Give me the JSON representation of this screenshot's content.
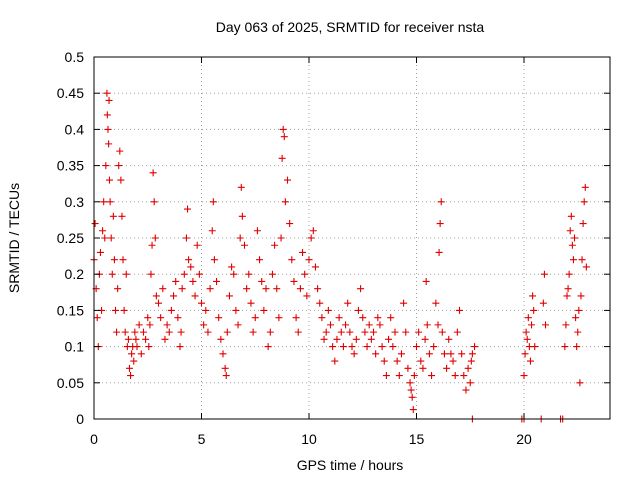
{
  "chart_data": {
    "type": "scatter",
    "title": "Day 063 of 2025, SRMTID for receiver nsta",
    "xlabel": "GPS time / hours",
    "ylabel": "SRMTID / TECUs",
    "xlim": [
      0,
      24
    ],
    "ylim": [
      0,
      0.5
    ],
    "x_ticks": [
      0,
      5,
      10,
      15,
      20
    ],
    "x_tick_labels": [
      "0",
      "5",
      "10",
      "15",
      "20"
    ],
    "y_ticks": [
      0,
      0.05,
      0.1,
      0.15,
      0.2,
      0.25,
      0.3,
      0.35,
      0.4,
      0.45,
      0.5
    ],
    "y_tick_labels": [
      "0",
      "0.05",
      "0.1",
      "0.15",
      "0.2",
      "0.25",
      "0.3",
      "0.35",
      "0.4",
      "0.45",
      "0.5"
    ],
    "grid": true,
    "marker": "plus",
    "color": "#e00000",
    "series": [
      {
        "name": "SRMTID",
        "points": [
          [
            0.0,
            0.22
          ],
          [
            0.05,
            0.27
          ],
          [
            0.1,
            0.18
          ],
          [
            0.15,
            0.14
          ],
          [
            0.2,
            0.1
          ],
          [
            0.25,
            0.2
          ],
          [
            0.3,
            0.23
          ],
          [
            0.35,
            0.15
          ],
          [
            0.4,
            0.26
          ],
          [
            0.45,
            0.3
          ],
          [
            0.5,
            0.25
          ],
          [
            0.55,
            0.35
          ],
          [
            0.6,
            0.45
          ],
          [
            0.62,
            0.42
          ],
          [
            0.65,
            0.4
          ],
          [
            0.68,
            0.38
          ],
          [
            0.7,
            0.44
          ],
          [
            0.72,
            0.33
          ],
          [
            0.75,
            0.3
          ],
          [
            0.8,
            0.25
          ],
          [
            0.85,
            0.2
          ],
          [
            0.9,
            0.28
          ],
          [
            0.95,
            0.22
          ],
          [
            1.0,
            0.15
          ],
          [
            1.05,
            0.12
          ],
          [
            1.1,
            0.18
          ],
          [
            1.15,
            0.35
          ],
          [
            1.2,
            0.37
          ],
          [
            1.25,
            0.33
          ],
          [
            1.3,
            0.28
          ],
          [
            1.35,
            0.22
          ],
          [
            1.4,
            0.15
          ],
          [
            1.45,
            0.12
          ],
          [
            1.5,
            0.2
          ],
          [
            1.55,
            0.1
          ],
          [
            1.6,
            0.11
          ],
          [
            1.65,
            0.07
          ],
          [
            1.7,
            0.06
          ],
          [
            1.75,
            0.09
          ],
          [
            1.8,
            0.1
          ],
          [
            1.85,
            0.08
          ],
          [
            1.9,
            0.12
          ],
          [
            1.95,
            0.11
          ],
          [
            2.0,
            0.1
          ],
          [
            2.1,
            0.13
          ],
          [
            2.2,
            0.09
          ],
          [
            2.3,
            0.12
          ],
          [
            2.4,
            0.11
          ],
          [
            2.5,
            0.14
          ],
          [
            2.55,
            0.1
          ],
          [
            2.6,
            0.13
          ],
          [
            2.65,
            0.2
          ],
          [
            2.7,
            0.24
          ],
          [
            2.75,
            0.34
          ],
          [
            2.8,
            0.3
          ],
          [
            2.85,
            0.25
          ],
          [
            2.9,
            0.17
          ],
          [
            3.0,
            0.16
          ],
          [
            3.1,
            0.14
          ],
          [
            3.2,
            0.18
          ],
          [
            3.3,
            0.11
          ],
          [
            3.4,
            0.13
          ],
          [
            3.5,
            0.12
          ],
          [
            3.6,
            0.15
          ],
          [
            3.7,
            0.17
          ],
          [
            3.8,
            0.19
          ],
          [
            3.9,
            0.14
          ],
          [
            4.0,
            0.1
          ],
          [
            4.05,
            0.12
          ],
          [
            4.1,
            0.18
          ],
          [
            4.2,
            0.2
          ],
          [
            4.3,
            0.25
          ],
          [
            4.35,
            0.29
          ],
          [
            4.4,
            0.22
          ],
          [
            4.5,
            0.21
          ],
          [
            4.6,
            0.19
          ],
          [
            4.7,
            0.17
          ],
          [
            4.8,
            0.24
          ],
          [
            4.9,
            0.2
          ],
          [
            5.0,
            0.16
          ],
          [
            5.1,
            0.13
          ],
          [
            5.2,
            0.15
          ],
          [
            5.3,
            0.12
          ],
          [
            5.4,
            0.18
          ],
          [
            5.5,
            0.26
          ],
          [
            5.55,
            0.3
          ],
          [
            5.6,
            0.22
          ],
          [
            5.7,
            0.19
          ],
          [
            5.8,
            0.14
          ],
          [
            5.9,
            0.11
          ],
          [
            6.0,
            0.09
          ],
          [
            6.1,
            0.07
          ],
          [
            6.15,
            0.06
          ],
          [
            6.2,
            0.12
          ],
          [
            6.3,
            0.17
          ],
          [
            6.4,
            0.21
          ],
          [
            6.5,
            0.2
          ],
          [
            6.6,
            0.15
          ],
          [
            6.7,
            0.13
          ],
          [
            6.8,
            0.25
          ],
          [
            6.85,
            0.32
          ],
          [
            6.9,
            0.28
          ],
          [
            7.0,
            0.24
          ],
          [
            7.1,
            0.18
          ],
          [
            7.2,
            0.2
          ],
          [
            7.3,
            0.16
          ],
          [
            7.4,
            0.12
          ],
          [
            7.5,
            0.14
          ],
          [
            7.6,
            0.26
          ],
          [
            7.7,
            0.22
          ],
          [
            7.8,
            0.19
          ],
          [
            7.9,
            0.15
          ],
          [
            8.0,
            0.18
          ],
          [
            8.1,
            0.1
          ],
          [
            8.2,
            0.12
          ],
          [
            8.3,
            0.2
          ],
          [
            8.4,
            0.24
          ],
          [
            8.5,
            0.18
          ],
          [
            8.6,
            0.14
          ],
          [
            8.7,
            0.25
          ],
          [
            8.75,
            0.36
          ],
          [
            8.8,
            0.4
          ],
          [
            8.85,
            0.39
          ],
          [
            8.9,
            0.3
          ],
          [
            9.0,
            0.33
          ],
          [
            9.1,
            0.27
          ],
          [
            9.2,
            0.22
          ],
          [
            9.3,
            0.19
          ],
          [
            9.4,
            0.14
          ],
          [
            9.5,
            0.12
          ],
          [
            9.6,
            0.18
          ],
          [
            9.7,
            0.23
          ],
          [
            9.8,
            0.2
          ],
          [
            9.9,
            0.17
          ],
          [
            10.0,
            0.22
          ],
          [
            10.1,
            0.25
          ],
          [
            10.2,
            0.26
          ],
          [
            10.3,
            0.21
          ],
          [
            10.4,
            0.18
          ],
          [
            10.5,
            0.16
          ],
          [
            10.6,
            0.14
          ],
          [
            10.7,
            0.11
          ],
          [
            10.8,
            0.12
          ],
          [
            10.9,
            0.15
          ],
          [
            11.0,
            0.13
          ],
          [
            11.1,
            0.1
          ],
          [
            11.2,
            0.08
          ],
          [
            11.3,
            0.11
          ],
          [
            11.4,
            0.14
          ],
          [
            11.5,
            0.12
          ],
          [
            11.6,
            0.1
          ],
          [
            11.7,
            0.13
          ],
          [
            11.8,
            0.16
          ],
          [
            11.9,
            0.12
          ],
          [
            12.0,
            0.1
          ],
          [
            12.1,
            0.09
          ],
          [
            12.2,
            0.11
          ],
          [
            12.3,
            0.15
          ],
          [
            12.4,
            0.18
          ],
          [
            12.5,
            0.14
          ],
          [
            12.6,
            0.12
          ],
          [
            12.7,
            0.1
          ],
          [
            12.8,
            0.13
          ],
          [
            12.9,
            0.11
          ],
          [
            13.0,
            0.12
          ],
          [
            13.1,
            0.09
          ],
          [
            13.2,
            0.14
          ],
          [
            13.3,
            0.13
          ],
          [
            13.4,
            0.1
          ],
          [
            13.5,
            0.08
          ],
          [
            13.6,
            0.06
          ],
          [
            13.7,
            0.11
          ],
          [
            13.8,
            0.14
          ],
          [
            13.9,
            0.1
          ],
          [
            14.0,
            0.12
          ],
          [
            14.1,
            0.08
          ],
          [
            14.2,
            0.06
          ],
          [
            14.3,
            0.09
          ],
          [
            14.4,
            0.16
          ],
          [
            14.5,
            0.12
          ],
          [
            14.6,
            0.07
          ],
          [
            14.7,
            0.05
          ],
          [
            14.75,
            0.04
          ],
          [
            14.8,
            0.03
          ],
          [
            14.85,
            0.013
          ],
          [
            14.9,
            0.06
          ],
          [
            15.0,
            0.1
          ],
          [
            15.1,
            0.12
          ],
          [
            15.2,
            0.08
          ],
          [
            15.3,
            0.07
          ],
          [
            15.4,
            0.11
          ],
          [
            15.45,
            0.19
          ],
          [
            15.5,
            0.13
          ],
          [
            15.6,
            0.09
          ],
          [
            15.7,
            0.06
          ],
          [
            15.8,
            0.1
          ],
          [
            15.9,
            0.16
          ],
          [
            16.0,
            0.13
          ],
          [
            16.05,
            0.23
          ],
          [
            16.1,
            0.27
          ],
          [
            16.15,
            0.3
          ],
          [
            16.2,
            0.12
          ],
          [
            16.3,
            0.09
          ],
          [
            16.4,
            0.07
          ],
          [
            16.5,
            0.11
          ],
          [
            16.6,
            0.09
          ],
          [
            16.7,
            0.08
          ],
          [
            16.8,
            0.06
          ],
          [
            16.9,
            0.12
          ],
          [
            17.0,
            0.15
          ],
          [
            17.1,
            0.09
          ],
          [
            17.2,
            0.06
          ],
          [
            17.3,
            0.04
          ],
          [
            17.4,
            0.07
          ],
          [
            17.5,
            0.05
          ],
          [
            17.55,
            0.08
          ],
          [
            17.6,
            0.09
          ],
          [
            17.7,
            0.1
          ],
          [
            17.6,
            0.0
          ],
          [
            19.9,
            0.0
          ],
          [
            20.0,
            0.0
          ],
          [
            20.0,
            0.06
          ],
          [
            20.05,
            0.09
          ],
          [
            20.1,
            0.12
          ],
          [
            20.15,
            0.11
          ],
          [
            20.2,
            0.14
          ],
          [
            20.25,
            0.1
          ],
          [
            20.3,
            0.08
          ],
          [
            20.35,
            0.13
          ],
          [
            20.4,
            0.17
          ],
          [
            20.45,
            0.15
          ],
          [
            20.5,
            0.1
          ],
          [
            20.8,
            0.0
          ],
          [
            20.9,
            0.16
          ],
          [
            20.95,
            0.2
          ],
          [
            21.0,
            0.13
          ],
          [
            21.7,
            0.0
          ],
          [
            21.8,
            0.0
          ],
          [
            21.9,
            0.1
          ],
          [
            21.95,
            0.13
          ],
          [
            22.0,
            0.17
          ],
          [
            22.05,
            0.18
          ],
          [
            22.1,
            0.2
          ],
          [
            22.15,
            0.26
          ],
          [
            22.2,
            0.28
          ],
          [
            22.25,
            0.24
          ],
          [
            22.3,
            0.22
          ],
          [
            22.35,
            0.25
          ],
          [
            22.4,
            0.14
          ],
          [
            22.45,
            0.1
          ],
          [
            22.5,
            0.12
          ],
          [
            22.55,
            0.15
          ],
          [
            22.6,
            0.05
          ],
          [
            22.65,
            0.17
          ],
          [
            22.7,
            0.22
          ],
          [
            22.75,
            0.27
          ],
          [
            22.8,
            0.3
          ],
          [
            22.85,
            0.32
          ],
          [
            22.9,
            0.21
          ]
        ]
      }
    ]
  }
}
